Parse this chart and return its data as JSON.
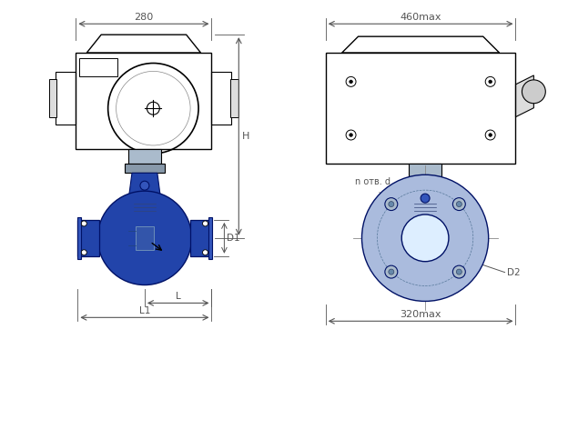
{
  "title": "",
  "bg_color": "#ffffff",
  "line_color": "#000000",
  "blue_color": "#2244aa",
  "blue_light": "#4466cc",
  "blue_flange": "#3355bb",
  "gray_color": "#aaaaaa",
  "dim_color": "#555555",
  "valve_blue": "#1133aa",
  "flange_gray": "#ccccdd",
  "labels": {
    "dim_280": "280",
    "dim_460": "460max",
    "dim_320": "320max",
    "dim_H": "H",
    "dim_D1": "D1",
    "dim_D2": "D2",
    "dim_L": "L",
    "dim_L1": "L1",
    "dim_n_otv_d": "n отв. d"
  }
}
